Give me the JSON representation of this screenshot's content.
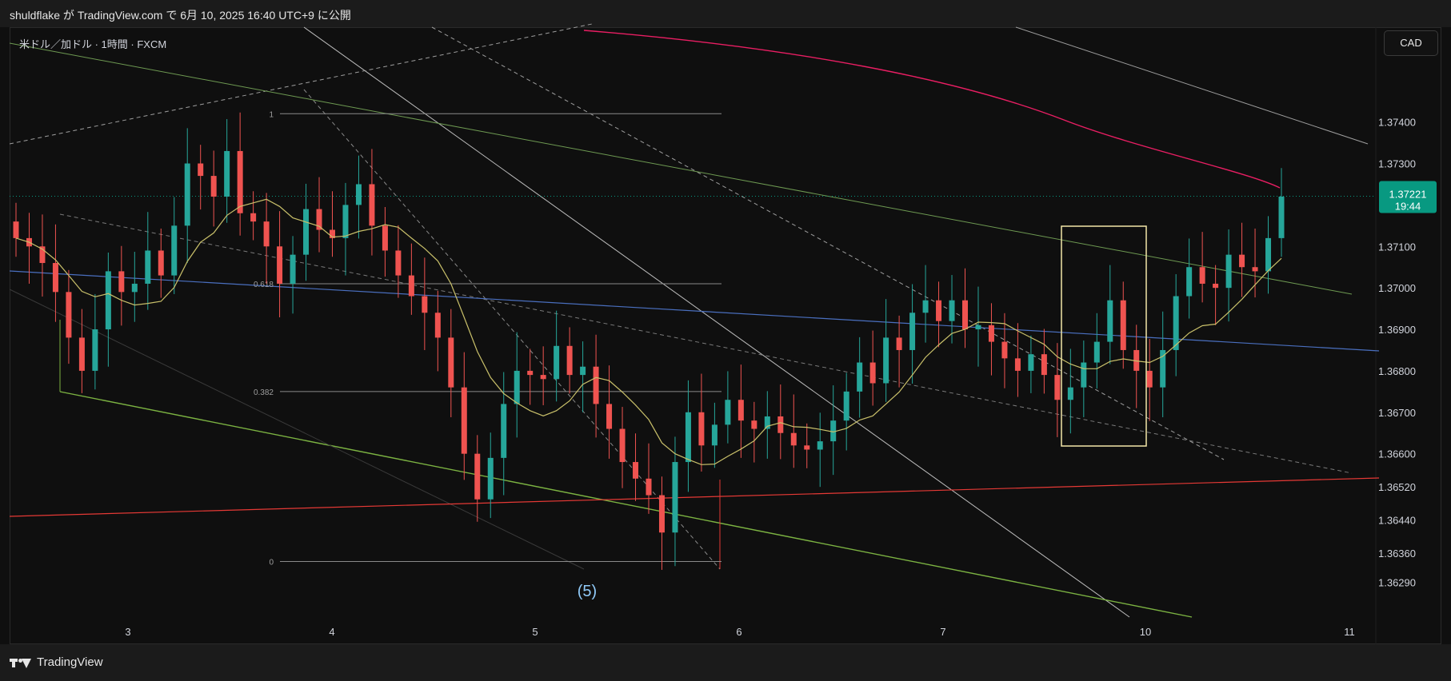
{
  "header": {
    "published_text": "shuldflake が TradingView.com で 6月 10, 2025 16:40 UTC+9 に公開"
  },
  "symbol_title": "米ドル／加ドル · 1時間 · FXCM",
  "currency_button": "CAD",
  "price_badge": {
    "price": "1.37221",
    "countdown": "19:44",
    "color": "#089981"
  },
  "footer": {
    "brand": "TradingView"
  },
  "wave_label": "(5)",
  "fib_levels": [
    {
      "label": "1",
      "value": 1.3742
    },
    {
      "label": "0.618",
      "value": 1.3701
    },
    {
      "label": "0.382",
      "value": 1.3675
    },
    {
      "label": "0",
      "value": 1.3634
    }
  ],
  "colors": {
    "up": "#26a69a",
    "down": "#ef5350",
    "ma_slow": "#e91e63",
    "ma_fast": "#c9c06a",
    "blue_line": "#4a6fbf",
    "red_line": "#e53935",
    "green_line": "#7cb342",
    "box": "#f3e7a9"
  },
  "chart_data": {
    "type": "candlestick",
    "x_ticks": [
      "3",
      "4",
      "5",
      "6",
      "7",
      "10",
      "11"
    ],
    "y_ticks": [
      "1.37400",
      "1.37300",
      "1.37100",
      "1.37000",
      "1.36900",
      "1.36800",
      "1.36700",
      "1.36600",
      "1.36520",
      "1.36440",
      "1.36360",
      "1.36290"
    ],
    "ylim": [
      1.3621,
      1.3754
    ],
    "last_price": 1.37221,
    "close_path": [
      1.3712,
      1.371,
      1.3706,
      1.3699,
      1.3688,
      1.368,
      1.369,
      1.3704,
      1.3699,
      1.3701,
      1.3709,
      1.3703,
      1.3715,
      1.373,
      1.3727,
      1.3722,
      1.3733,
      1.3718,
      1.3716,
      1.371,
      1.3701,
      1.3708,
      1.3719,
      1.3714,
      1.3712,
      1.372,
      1.3725,
      1.3715,
      1.3709,
      1.3703,
      1.3698,
      1.3694,
      1.3688,
      1.3676,
      1.366,
      1.3649,
      1.3659,
      1.3672,
      1.368,
      1.3679,
      1.3678,
      1.3686,
      1.3679,
      1.3681,
      1.3672,
      1.3666,
      1.3658,
      1.3654,
      1.365,
      1.3641,
      1.3658,
      1.367,
      1.3662,
      1.3667,
      1.3673,
      1.3668,
      1.3666,
      1.3669,
      1.3665,
      1.3662,
      1.3661,
      1.3663,
      1.3668,
      1.3675,
      1.3682,
      1.3677,
      1.3688,
      1.3685,
      1.3694,
      1.3697,
      1.3692,
      1.3697,
      1.369,
      1.3691,
      1.3687,
      1.3683,
      1.368,
      1.3684,
      1.3679,
      1.3673,
      1.3676,
      1.3682,
      1.3687,
      1.3697,
      1.3685,
      1.368,
      1.3676,
      1.3685,
      1.3698,
      1.3705,
      1.3701,
      1.37,
      1.3708,
      1.3705,
      1.3704,
      1.3712,
      1.3722
    ]
  }
}
